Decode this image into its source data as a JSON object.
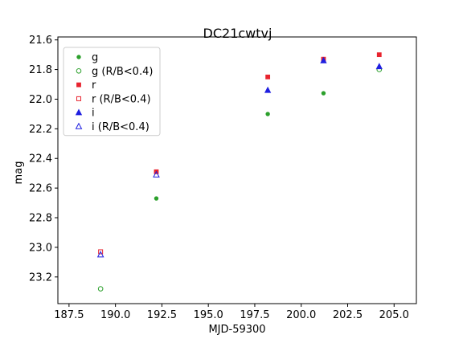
{
  "chart_data": {
    "type": "scatter",
    "title": "DC21cwtvj",
    "xlabel": "MJD-59300",
    "ylabel": "mag",
    "xlim": [
      186.9,
      206.2
    ],
    "ylim": [
      23.38,
      21.58
    ],
    "y_inverted": true,
    "x_ticks": [
      "187.5",
      "190.0",
      "192.5",
      "195.0",
      "197.5",
      "200.0",
      "202.5",
      "205.0"
    ],
    "y_ticks": [
      "21.6",
      "21.8",
      "22.0",
      "22.2",
      "22.4",
      "22.6",
      "22.8",
      "23.0",
      "23.2"
    ],
    "grid": false,
    "legend_position": "top-left",
    "series": [
      {
        "name": "g",
        "color": "#2ca02c",
        "marker": "circle",
        "filled": true,
        "points": [
          [
            192.2,
            22.67
          ],
          [
            198.2,
            22.1
          ],
          [
            201.2,
            21.96
          ]
        ]
      },
      {
        "name": "g (R/B<0.4)",
        "color": "#2ca02c",
        "marker": "circle",
        "filled": false,
        "points": [
          [
            189.2,
            23.28
          ],
          [
            204.2,
            21.8
          ]
        ]
      },
      {
        "name": "r",
        "color": "#e8242f",
        "marker": "square",
        "filled": true,
        "points": [
          [
            192.2,
            22.49
          ],
          [
            198.2,
            21.85
          ],
          [
            201.2,
            21.73
          ],
          [
            204.2,
            21.7
          ]
        ]
      },
      {
        "name": "r (R/B<0.4)",
        "color": "#e8242f",
        "marker": "square",
        "filled": false,
        "points": [
          [
            189.2,
            23.03
          ]
        ]
      },
      {
        "name": "i",
        "color": "#1f1fe0",
        "marker": "triangle",
        "filled": true,
        "points": [
          [
            198.2,
            21.94
          ],
          [
            201.2,
            21.74
          ],
          [
            204.2,
            21.78
          ]
        ]
      },
      {
        "name": "i (R/B<0.4)",
        "color": "#1f1fe0",
        "marker": "triangle",
        "filled": false,
        "points": [
          [
            189.2,
            23.05
          ],
          [
            192.2,
            22.51
          ]
        ]
      }
    ]
  }
}
